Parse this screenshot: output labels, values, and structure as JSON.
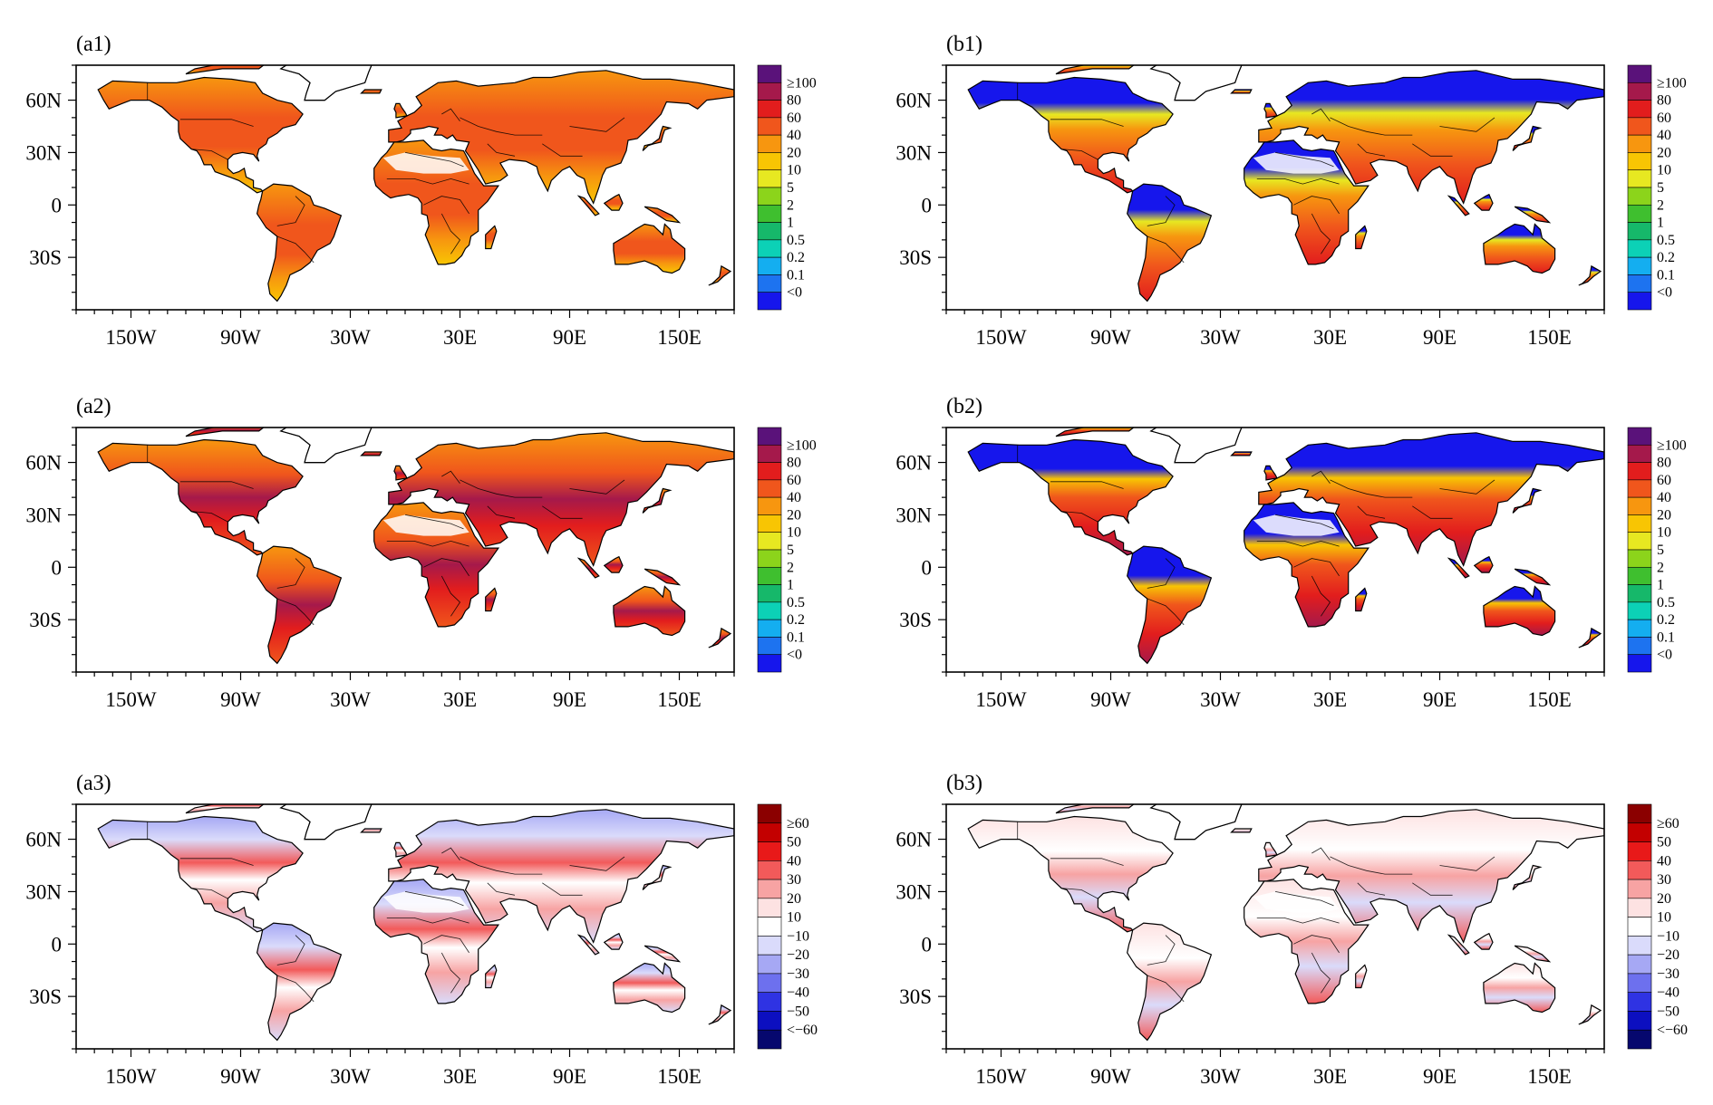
{
  "figure": {
    "type": "map-panel-grid",
    "panels": [
      {
        "id": "a1",
        "label": "(a1)",
        "scale": "magnitude",
        "colors": "warm-orange"
      },
      {
        "id": "b1",
        "label": "(b1)",
        "scale": "magnitude",
        "colors": "cold-north"
      },
      {
        "id": "a2",
        "label": "(a2)",
        "scale": "magnitude",
        "colors": "warm-purple"
      },
      {
        "id": "b2",
        "label": "(b2)",
        "scale": "magnitude",
        "colors": "cold-north-2"
      },
      {
        "id": "a3",
        "label": "(a3)",
        "scale": "difference",
        "colors": "diff-a"
      },
      {
        "id": "b3",
        "label": "(b3)",
        "scale": "difference",
        "colors": "diff-b"
      }
    ],
    "longitude_ticks": [
      "150W",
      "90W",
      "30W",
      "30E",
      "90E",
      "150E"
    ],
    "latitude_ticks": [
      "60N",
      "30N",
      "0",
      "30S"
    ],
    "map_extent": {
      "lon": [
        -180,
        180
      ],
      "lat": [
        -60,
        80
      ]
    }
  },
  "colorbars": {
    "magnitude": {
      "labels": [
        "≥100",
        "80",
        "60",
        "40",
        "20",
        "10",
        "5",
        "2",
        "1",
        "0.5",
        "0.2",
        "0.1",
        "<0"
      ],
      "colors": [
        "#5a127a",
        "#a5194b",
        "#e21d1d",
        "#f0561c",
        "#f7960f",
        "#f8c503",
        "#e7e821",
        "#8cd41b",
        "#3fbf2f",
        "#16b86a",
        "#0cd1b6",
        "#14aef0",
        "#1d73f0",
        "#1616ec"
      ]
    },
    "difference": {
      "labels": [
        "≥60",
        "50",
        "40",
        "30",
        "20",
        "10",
        "−10",
        "−20",
        "−30",
        "−40",
        "−50",
        "<−60"
      ],
      "colors": [
        "#8b0000",
        "#c30000",
        "#e81919",
        "#f25a5a",
        "#f7a3a3",
        "#fde2e2",
        "#ffffff",
        "#dadbfb",
        "#a6a8f4",
        "#6d70ee",
        "#2f33e3",
        "#0c0fc0",
        "#06086e"
      ]
    }
  }
}
